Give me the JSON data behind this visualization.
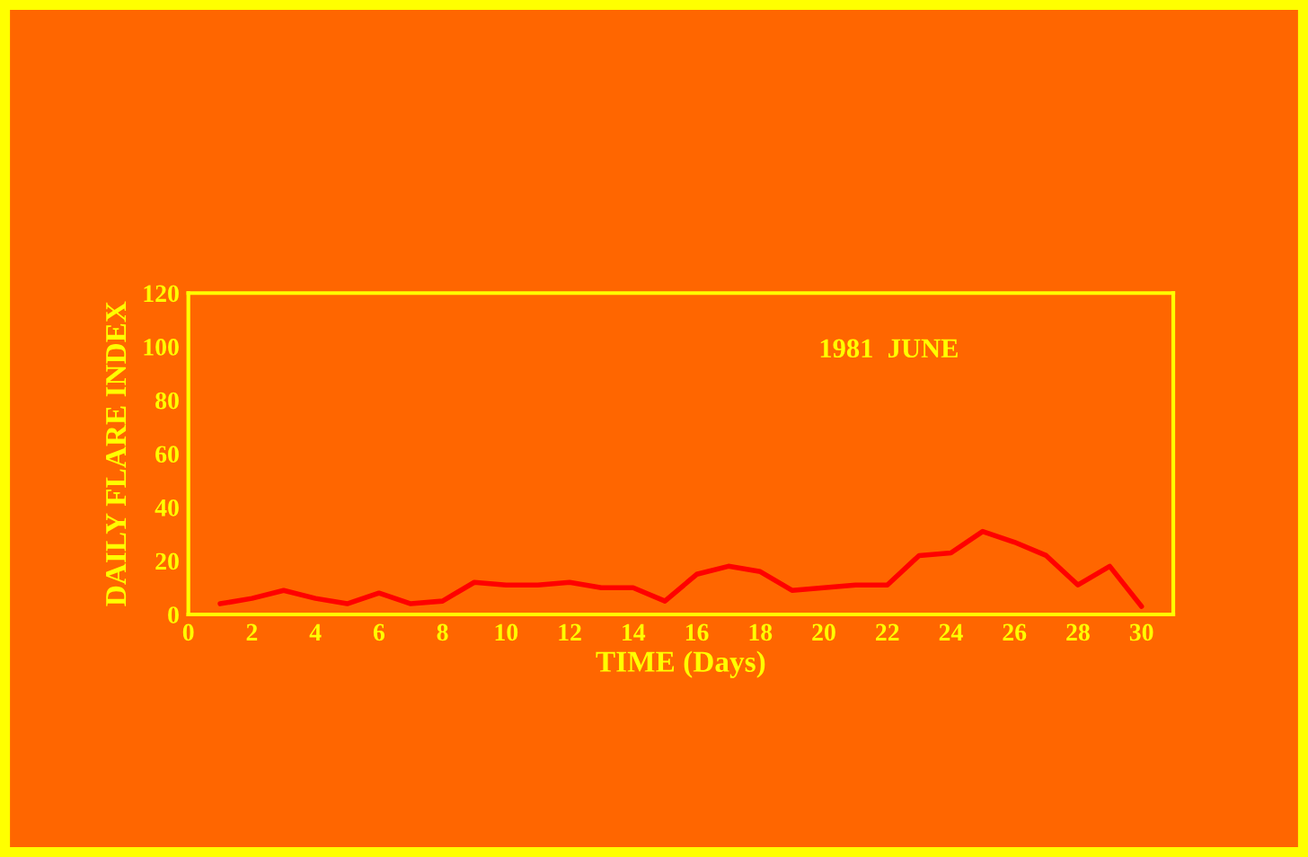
{
  "chart_data": {
    "type": "line",
    "xlabel": "TIME (Days)",
    "ylabel": "DAILY FLARE INDEX",
    "annotations": [
      "1981  JUNE"
    ],
    "x": [
      1,
      2,
      3,
      4,
      5,
      6,
      7,
      8,
      9,
      10,
      11,
      12,
      13,
      14,
      15,
      16,
      17,
      18,
      19,
      20,
      21,
      22,
      23,
      24,
      25,
      26,
      27,
      28,
      29,
      30
    ],
    "series": [
      {
        "color": "#ff0000",
        "values": [
          4,
          6,
          9,
          6,
          4,
          8,
          4,
          5,
          12,
          11,
          11,
          12,
          10,
          10,
          5,
          15,
          18,
          16,
          9,
          10,
          11,
          11,
          22,
          23,
          31,
          27,
          22,
          11,
          18,
          3
        ]
      }
    ],
    "xlim": [
      0,
      31
    ],
    "xticks": [
      0,
      2,
      4,
      6,
      8,
      10,
      12,
      14,
      16,
      18,
      20,
      22,
      24,
      26,
      28,
      30
    ],
    "ylim": [
      0,
      120
    ],
    "yticks": [
      0,
      20,
      40,
      60,
      80,
      100,
      120
    ],
    "grid": false,
    "legend": false,
    "marker": "none",
    "line_style": "solid"
  }
}
